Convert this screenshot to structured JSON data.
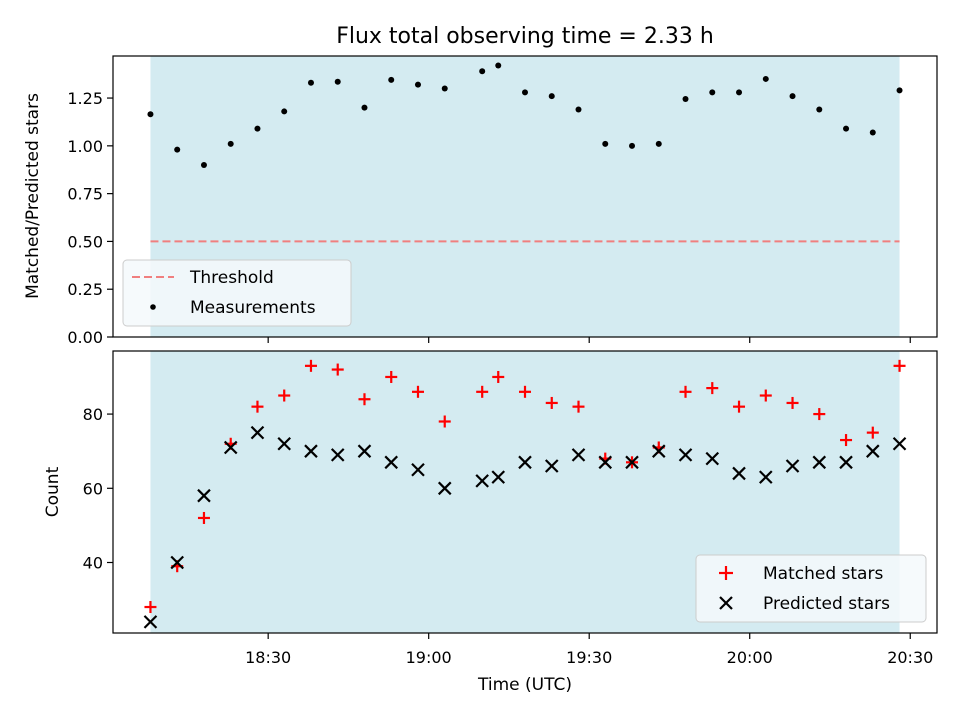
{
  "chart_data": {
    "title": "Flux total observing time = 2.33 h",
    "xlabel": "Time (UTC)",
    "x_tick_labels": [
      "18:30",
      "19:00",
      "19:30",
      "20:00",
      "20:30"
    ],
    "x_tick_minutes": [
      1110,
      1140,
      1170,
      1200,
      1230
    ],
    "xlim_minutes": [
      1081,
      1235
    ],
    "shaded_interval_minutes": [
      1088,
      1228
    ],
    "shade_color": "#d4ebf1",
    "x": [
      1088,
      1093,
      1098,
      1103,
      1108,
      1113,
      1118,
      1123,
      1128,
      1133,
      1138,
      1143,
      1150,
      1153,
      1158,
      1163,
      1168,
      1173,
      1178,
      1183,
      1188,
      1193,
      1198,
      1203,
      1208,
      1213,
      1218,
      1223,
      1228
    ],
    "panels": [
      {
        "type": "scatter",
        "ylabel": "Matched/Predicted stars",
        "ylim": [
          0.0,
          1.47
        ],
        "y_ticks": [
          "0.00",
          "0.25",
          "0.50",
          "0.75",
          "1.00",
          "1.25"
        ],
        "threshold": {
          "label": "Threshold",
          "value": 0.5,
          "color": "#f07f7f"
        },
        "series": [
          {
            "name": "Measurements",
            "color": "#000000",
            "marker": "dot",
            "values": [
              1.165,
              0.98,
              0.9,
              1.01,
              1.09,
              1.18,
              1.33,
              1.335,
              1.2,
              1.345,
              1.32,
              1.3,
              1.39,
              1.42,
              1.28,
              1.26,
              1.19,
              1.01,
              1.0,
              1.01,
              1.245,
              1.28,
              1.28,
              1.35,
              1.26,
              1.19,
              1.09,
              1.07,
              1.29
            ]
          }
        ],
        "legend": [
          "Threshold",
          "Measurements"
        ],
        "legend_position": "lower-left"
      },
      {
        "type": "scatter",
        "ylabel": "Count",
        "ylim": [
          21,
          97
        ],
        "y_ticks": [
          "40",
          "60",
          "80"
        ],
        "series": [
          {
            "name": "Matched stars",
            "color": "#ff0000",
            "marker": "plus",
            "values": [
              28,
              39,
              52,
              72,
              82,
              85,
              93,
              92,
              84,
              90,
              86,
              78,
              86,
              90,
              86,
              83,
              82,
              68,
              67,
              71,
              86,
              87,
              82,
              85,
              83,
              80,
              73,
              75,
              93
            ]
          },
          {
            "name": "Predicted stars",
            "color": "#000000",
            "marker": "x",
            "values": [
              24,
              40,
              58,
              71,
              75,
              72,
              70,
              69,
              70,
              67,
              65,
              60,
              62,
              63,
              67,
              66,
              69,
              67,
              67,
              70,
              69,
              68,
              64,
              63,
              66,
              67,
              67,
              70,
              72
            ]
          }
        ],
        "legend": [
          "Matched stars",
          "Predicted stars"
        ],
        "legend_position": "lower-right"
      }
    ]
  }
}
